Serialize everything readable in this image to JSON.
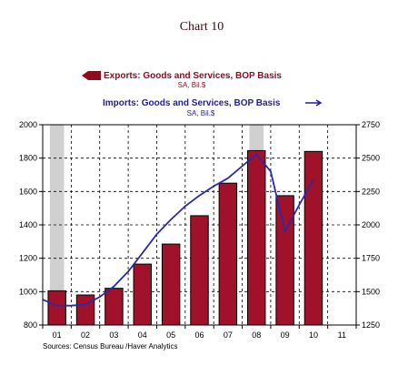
{
  "chart_data": {
    "type": "bar",
    "title": "Chart 10",
    "categories": [
      "01",
      "02",
      "03",
      "04",
      "05",
      "06",
      "07",
      "08",
      "09",
      "10",
      "11"
    ],
    "series": [
      {
        "name": "Exports: Goods and Services, BOP Basis",
        "unit": "SA, Bil.$",
        "type": "bar",
        "axis": "left",
        "values": [
          1005,
          980,
          1020,
          1165,
          1285,
          1455,
          1650,
          1845,
          1575,
          1840,
          null
        ]
      },
      {
        "name": "Imports: Goods and Services, BOP Basis",
        "unit": "SA, Bil.$",
        "type": "line",
        "axis": "right",
        "points": [
          [
            -0.5,
            1440
          ],
          [
            0.0,
            1395
          ],
          [
            0.5,
            1395
          ],
          [
            1.0,
            1405
          ],
          [
            1.5,
            1460
          ],
          [
            2.0,
            1540
          ],
          [
            2.5,
            1650
          ],
          [
            3.0,
            1790
          ],
          [
            3.5,
            1930
          ],
          [
            4.0,
            2040
          ],
          [
            4.5,
            2140
          ],
          [
            5.0,
            2220
          ],
          [
            5.5,
            2290
          ],
          [
            6.0,
            2350
          ],
          [
            6.5,
            2440
          ],
          [
            7.0,
            2530
          ],
          [
            7.5,
            2400
          ],
          [
            8.0,
            1950
          ],
          [
            8.5,
            2150
          ],
          [
            9.0,
            2340
          ]
        ]
      }
    ],
    "y_left": {
      "min": 800,
      "max": 2000,
      "ticks": [
        800,
        1000,
        1200,
        1400,
        1600,
        1800,
        2000
      ]
    },
    "y_right": {
      "min": 1250,
      "max": 2750,
      "ticks": [
        1250,
        1500,
        1750,
        2000,
        2250,
        2500,
        2750
      ]
    },
    "recessions": [
      [
        0,
        0
      ],
      [
        7,
        7
      ]
    ],
    "grid": true,
    "colors": {
      "bar": "#a0112a",
      "bar_outline": "#000000",
      "line": "#2a2aa8",
      "recession": "#d0d0d0",
      "exports_legend": "#8b0d1f",
      "imports_legend": "#1f1f9a"
    }
  },
  "source_note": "Sources:  Census Bureau /Haver Analytics"
}
